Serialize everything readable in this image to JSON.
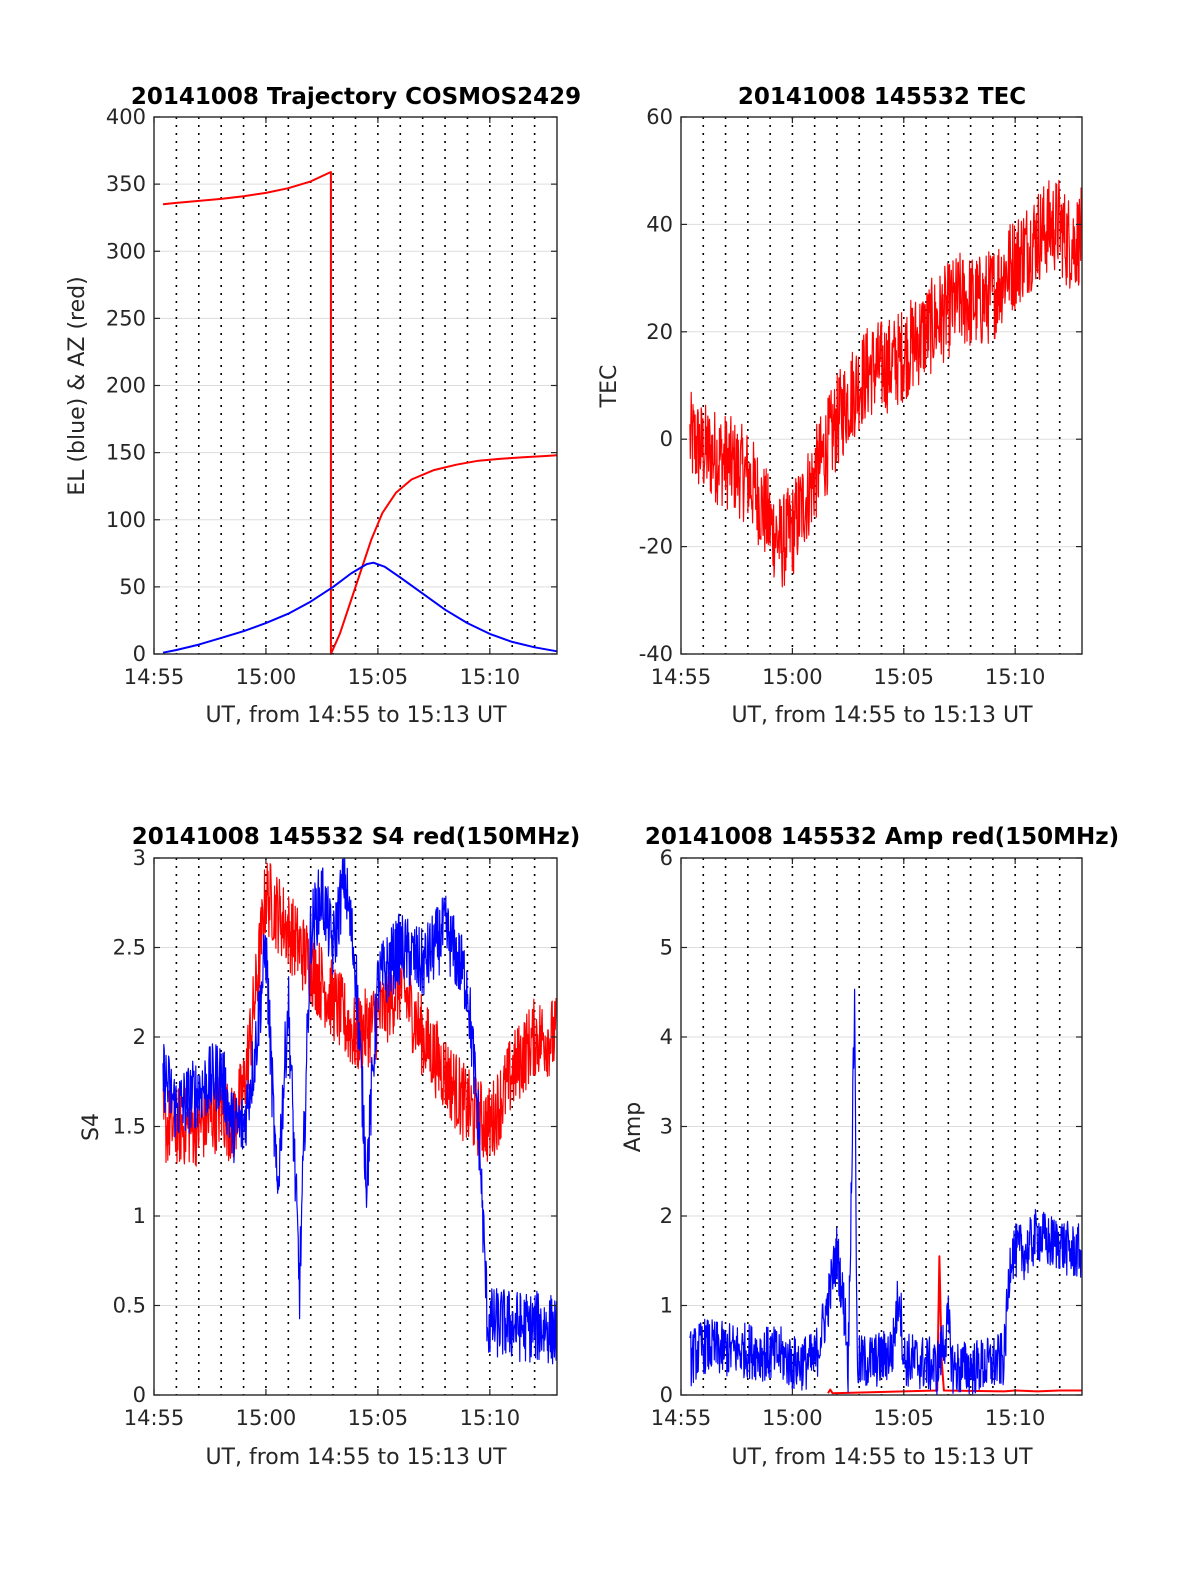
{
  "figure": {
    "colors": {
      "red": "#ff0000",
      "blue": "#0000ff",
      "grid": "#000000",
      "axis": "#262626"
    }
  },
  "chart_data": [
    {
      "id": "trajectory",
      "type": "line",
      "title": "20141008 Trajectory COSMOS2429",
      "xlabel": "UT, from 14:55 to 15:13 UT",
      "ylabel": "EL (blue) & AZ (red)",
      "xlim": [
        0,
        18
      ],
      "ylim": [
        0,
        400
      ],
      "x_ticks": [
        0,
        5,
        10,
        15
      ],
      "x_tick_labels": [
        "14:55",
        "15:00",
        "15:05",
        "15:10"
      ],
      "y_ticks": [
        0,
        50,
        100,
        150,
        200,
        250,
        300,
        350,
        400
      ],
      "y_tick_labels": [
        "0",
        "50",
        "100",
        "150",
        "200",
        "250",
        "300",
        "350",
        "400"
      ],
      "vertical_dotted_grid_minutes": [
        1,
        2,
        3,
        4,
        5,
        6,
        7,
        8,
        9,
        10,
        11,
        12,
        13,
        14,
        15,
        16,
        17
      ],
      "series": [
        {
          "color": "red",
          "points": [
            [
              0.4,
              335
            ],
            [
              1,
              336
            ],
            [
              2,
              337.5
            ],
            [
              3,
              339
            ],
            [
              4,
              341
            ],
            [
              5,
              343.5
            ],
            [
              6,
              347
            ],
            [
              7,
              352
            ],
            [
              7.9,
              359
            ],
            [
              7.9,
              0
            ],
            [
              8.3,
              15
            ],
            [
              8.7,
              35
            ],
            [
              9.2,
              60
            ],
            [
              9.7,
              85
            ],
            [
              10.2,
              105
            ],
            [
              10.8,
              120
            ],
            [
              11.5,
              130
            ],
            [
              12.5,
              137
            ],
            [
              13.5,
              141
            ],
            [
              14.5,
              144
            ],
            [
              15.5,
              145.5
            ],
            [
              16.5,
              146.5
            ],
            [
              17.5,
              147.5
            ],
            [
              18,
              148
            ]
          ]
        },
        {
          "color": "blue",
          "points": [
            [
              0.4,
              1
            ],
            [
              1,
              3
            ],
            [
              2,
              7
            ],
            [
              3,
              12
            ],
            [
              4,
              17
            ],
            [
              5,
              23
            ],
            [
              6,
              30
            ],
            [
              7,
              39
            ],
            [
              8,
              50
            ],
            [
              8.8,
              60
            ],
            [
              9.5,
              67
            ],
            [
              9.8,
              68
            ],
            [
              10.3,
              65
            ],
            [
              11,
              57
            ],
            [
              12,
              45
            ],
            [
              13,
              33
            ],
            [
              14,
              23
            ],
            [
              15,
              15
            ],
            [
              16,
              9
            ],
            [
              17,
              5
            ],
            [
              18,
              2
            ]
          ]
        }
      ]
    },
    {
      "id": "tec",
      "type": "line",
      "title": "20141008 145532 TEC",
      "xlabel": "UT, from 14:55 to 15:13 UT",
      "ylabel": "TEC",
      "xlim": [
        0,
        18
      ],
      "ylim": [
        -40,
        60
      ],
      "x_ticks": [
        0,
        5,
        10,
        15
      ],
      "x_tick_labels": [
        "14:55",
        "15:00",
        "15:05",
        "15:10"
      ],
      "y_ticks": [
        -40,
        -20,
        0,
        20,
        40,
        60
      ],
      "y_tick_labels": [
        "-40",
        "-20",
        "0",
        "20",
        "40",
        "60"
      ],
      "vertical_dotted_grid_minutes": [
        1,
        2,
        3,
        4,
        5,
        6,
        7,
        8,
        9,
        10,
        11,
        12,
        13,
        14,
        15,
        16,
        17
      ],
      "series": [
        {
          "color": "red",
          "noise": 0.6,
          "points": [
            [
              0.4,
              0
            ],
            [
              1,
              -2
            ],
            [
              2,
              -4
            ],
            [
              3,
              -7
            ],
            [
              3.5,
              -11
            ],
            [
              4,
              -16
            ],
            [
              4.5,
              -19.5
            ],
            [
              5,
              -17
            ],
            [
              5.5,
              -12
            ],
            [
              6,
              -7
            ],
            [
              6.5,
              -2
            ],
            [
              7,
              3
            ],
            [
              7.5,
              7.5
            ],
            [
              8,
              10.5
            ],
            [
              8.5,
              13
            ],
            [
              9,
              13.5
            ],
            [
              9.5,
              14
            ],
            [
              10,
              16
            ],
            [
              10.5,
              18
            ],
            [
              11,
              20
            ],
            [
              11.5,
              22
            ],
            [
              12,
              24
            ],
            [
              12.5,
              26
            ],
            [
              13,
              25.5
            ],
            [
              13.5,
              25.5
            ],
            [
              14,
              27
            ],
            [
              14.5,
              31
            ],
            [
              15,
              33
            ],
            [
              15.5,
              35.5
            ],
            [
              16,
              38
            ],
            [
              16.5,
              39.5
            ],
            [
              17,
              40
            ],
            [
              17.3,
              37
            ],
            [
              17.6,
              36.5
            ],
            [
              18,
              38
            ]
          ]
        }
      ]
    },
    {
      "id": "s4",
      "type": "line",
      "title": "20141008 145532 S4 red(150MHz)",
      "xlabel": "UT, from 14:55 to 15:13 UT",
      "ylabel": "S4",
      "xlim": [
        0,
        18
      ],
      "ylim": [
        0,
        3
      ],
      "x_ticks": [
        0,
        5,
        10,
        15
      ],
      "x_tick_labels": [
        "14:55",
        "15:00",
        "15:05",
        "15:10"
      ],
      "y_ticks": [
        0,
        0.5,
        1,
        1.5,
        2,
        2.5,
        3
      ],
      "y_tick_labels": [
        "0",
        "0.5",
        "1",
        "1.5",
        "2",
        "2.5",
        "3"
      ],
      "vertical_dotted_grid_minutes": [
        1,
        2,
        3,
        4,
        5,
        6,
        7,
        8,
        9,
        10,
        11,
        12,
        13,
        14,
        15,
        16,
        17
      ],
      "series": [
        {
          "color": "red",
          "noise": 0.5,
          "points": [
            [
              0.4,
              1.5
            ],
            [
              1,
              1.5
            ],
            [
              2,
              1.5
            ],
            [
              3,
              1.6
            ],
            [
              3.5,
              1.5
            ],
            [
              4,
              1.7
            ],
            [
              4.5,
              2.2
            ],
            [
              5,
              2.8
            ],
            [
              6,
              2.6
            ],
            [
              7,
              2.4
            ],
            [
              8,
              2.2
            ],
            [
              9,
              2.0
            ],
            [
              10,
              2.1
            ],
            [
              11,
              2.3
            ],
            [
              12,
              2.0
            ],
            [
              13,
              1.8
            ],
            [
              14,
              1.6
            ],
            [
              15,
              1.5
            ],
            [
              16,
              1.8
            ],
            [
              17,
              2.0
            ],
            [
              18,
              2.0
            ]
          ]
        },
        {
          "color": "blue",
          "noise": 0.45,
          "points": [
            [
              0.4,
              1.8
            ],
            [
              1,
              1.6
            ],
            [
              2,
              1.7
            ],
            [
              3,
              1.8
            ],
            [
              3.5,
              1.5
            ],
            [
              4,
              1.5
            ],
            [
              4.5,
              1.9
            ],
            [
              5,
              2.5
            ],
            [
              5.5,
              1.1
            ],
            [
              6,
              2.2
            ],
            [
              6.5,
              0.6
            ],
            [
              7,
              2.6
            ],
            [
              7.5,
              2.8
            ],
            [
              8,
              2.5
            ],
            [
              8.5,
              2.9
            ],
            [
              9,
              2.4
            ],
            [
              9.5,
              1.2
            ],
            [
              10,
              2.3
            ],
            [
              11,
              2.5
            ],
            [
              12,
              2.4
            ],
            [
              13,
              2.6
            ],
            [
              14,
              2.3
            ],
            [
              14.5,
              1.5
            ],
            [
              14.9,
              0.4
            ],
            [
              15.5,
              0.4
            ],
            [
              16.5,
              0.38
            ],
            [
              17.5,
              0.38
            ],
            [
              18,
              0.35
            ]
          ]
        }
      ]
    },
    {
      "id": "amp",
      "type": "line",
      "title": "20141008 145532 Amp red(150MHz)",
      "xlabel": "UT, from 14:55 to 15:13 UT",
      "ylabel": "Amp",
      "xlim": [
        0,
        18
      ],
      "ylim": [
        0,
        6
      ],
      "x_ticks": [
        0,
        5,
        10,
        15
      ],
      "x_tick_labels": [
        "14:55",
        "15:00",
        "15:05",
        "15:10"
      ],
      "y_ticks": [
        0,
        1,
        2,
        3,
        4,
        5,
        6
      ],
      "y_tick_labels": [
        "0",
        "1",
        "2",
        "3",
        "4",
        "5",
        "6"
      ],
      "vertical_dotted_grid_minutes": [
        1,
        2,
        3,
        4,
        5,
        6,
        7,
        8,
        9,
        10,
        11,
        12,
        13,
        14,
        15,
        16,
        17
      ],
      "series": [
        {
          "color": "red",
          "points": [
            [
              6.6,
              0.02
            ],
            [
              6.7,
              0.06
            ],
            [
              6.8,
              0.02
            ],
            [
              11.5,
              0.05
            ],
            [
              11.6,
              1.55
            ],
            [
              11.7,
              0.4
            ],
            [
              11.8,
              0.05
            ],
            [
              14.5,
              0.04
            ],
            [
              15,
              0.05
            ],
            [
              16,
              0.04
            ],
            [
              17,
              0.05
            ],
            [
              18,
              0.05
            ]
          ]
        },
        {
          "color": "blue",
          "noise": 0.35,
          "points": [
            [
              0.4,
              0.4
            ],
            [
              1,
              0.55
            ],
            [
              2,
              0.5
            ],
            [
              3,
              0.5
            ],
            [
              4,
              0.45
            ],
            [
              4.5,
              0.45
            ],
            [
              5,
              0.35
            ],
            [
              6,
              0.38
            ],
            [
              6.5,
              0.9
            ],
            [
              7,
              1.6
            ],
            [
              7.4,
              0.8
            ],
            [
              7.5,
              0.3
            ],
            [
              7.8,
              4.5
            ],
            [
              7.9,
              0.35
            ],
            [
              9,
              0.4
            ],
            [
              9.5,
              0.5
            ],
            [
              9.8,
              1.2
            ],
            [
              10,
              0.4
            ],
            [
              11,
              0.35
            ],
            [
              11.5,
              0.3
            ],
            [
              12,
              0.8
            ],
            [
              12.2,
              0.3
            ],
            [
              13,
              0.3
            ],
            [
              14,
              0.35
            ],
            [
              14.5,
              0.4
            ],
            [
              14.8,
              1.6
            ],
            [
              15.5,
              1.6
            ],
            [
              16,
              1.8
            ],
            [
              16.5,
              1.7
            ],
            [
              17,
              1.7
            ],
            [
              17.5,
              1.6
            ],
            [
              18,
              1.6
            ]
          ]
        }
      ]
    }
  ]
}
